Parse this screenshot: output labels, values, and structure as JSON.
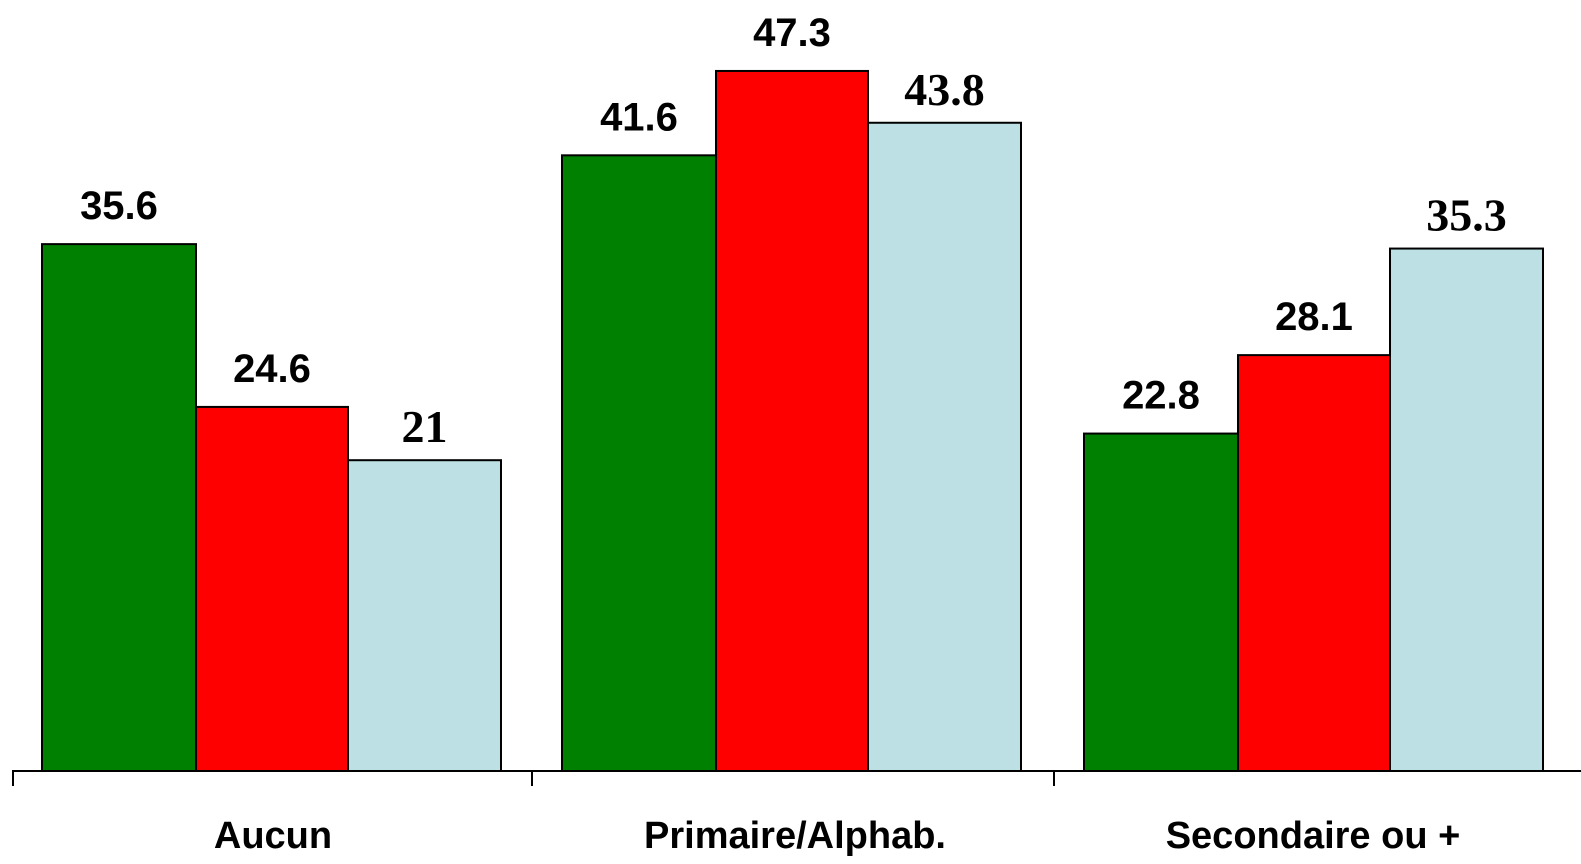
{
  "chart_data": {
    "type": "bar",
    "title": "",
    "xlabel": "",
    "ylabel": "",
    "categories": [
      "Aucun",
      "Primaire/Alphab.",
      "Secondaire ou +"
    ],
    "series": [
      {
        "values": [
          35.6,
          41.6,
          22.8
        ],
        "labels": [
          "35.6",
          "41.6",
          "22.8"
        ],
        "color": "#008000"
      },
      {
        "values": [
          24.6,
          47.3,
          28.1
        ],
        "labels": [
          "24.6",
          "47.3",
          "28.1"
        ],
        "color": "#ff0000"
      },
      {
        "values": [
          21,
          43.8,
          35.3
        ],
        "labels": [
          "21",
          "43.8",
          "35.3"
        ],
        "color": "#bce0e3"
      }
    ],
    "ylim": [
      0,
      50
    ],
    "grid": false,
    "legend": "none"
  }
}
